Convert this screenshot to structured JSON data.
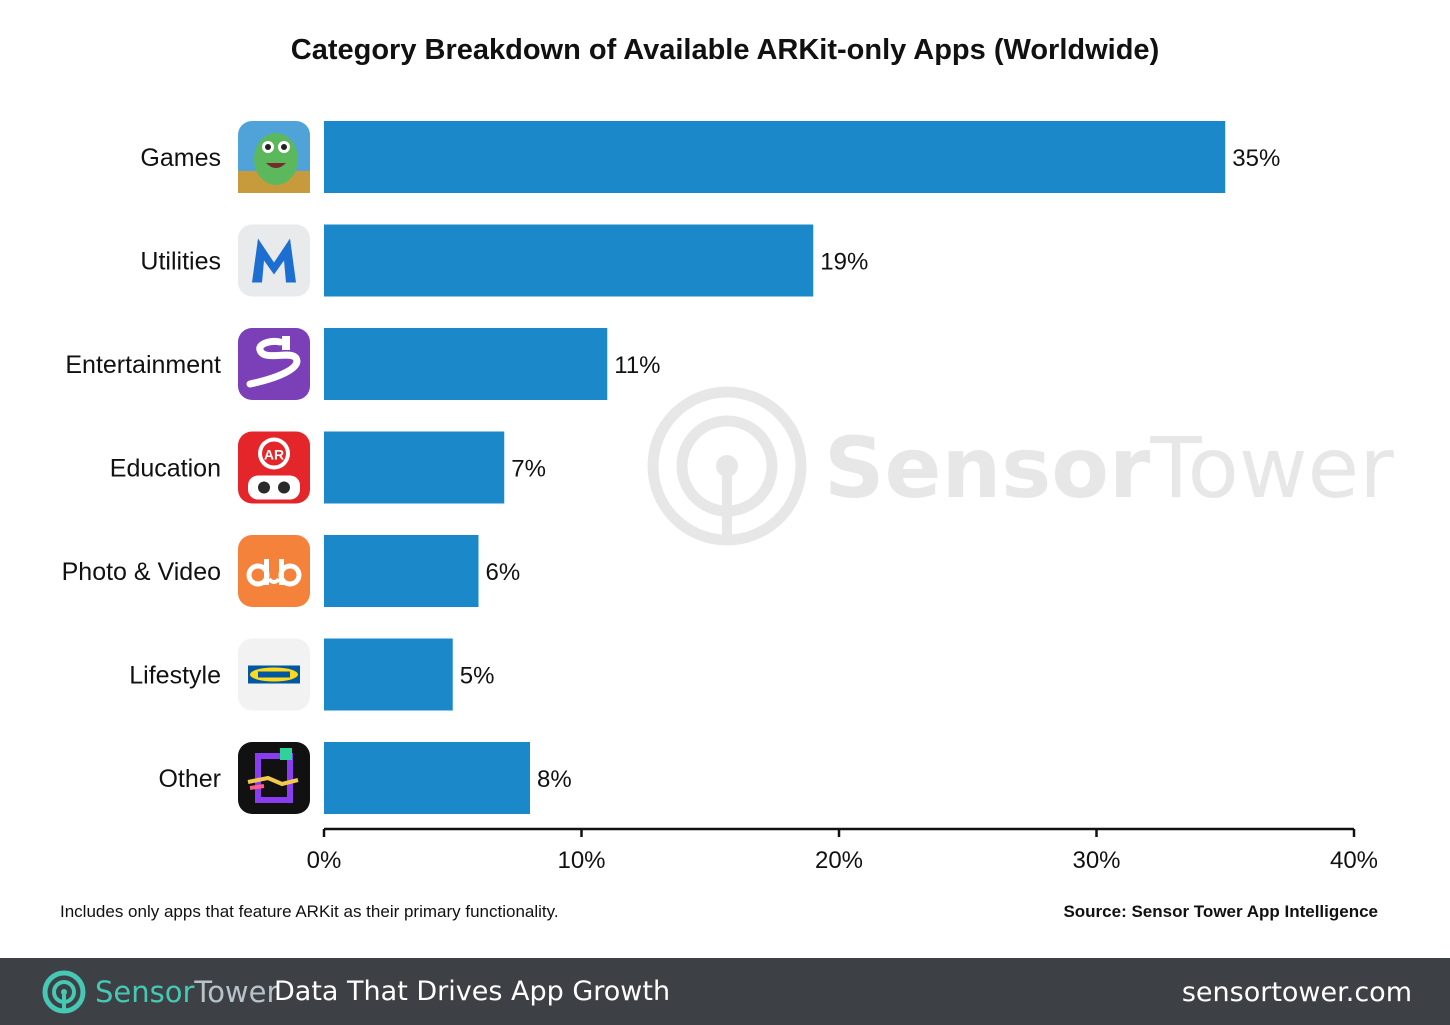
{
  "chart_data": {
    "type": "bar",
    "orientation": "horizontal",
    "title": "Category Breakdown of Available ARKit-only Apps (Worldwide)",
    "categories": [
      "Games",
      "Utilities",
      "Entertainment",
      "Education",
      "Photo & Video",
      "Lifestyle",
      "Other"
    ],
    "values": [
      35,
      19,
      11,
      7,
      6,
      5,
      8
    ],
    "value_labels": [
      "35%",
      "19%",
      "11%",
      "7%",
      "6%",
      "5%",
      "8%"
    ],
    "xlim": [
      0,
      40
    ],
    "ticks": [
      0,
      10,
      20,
      30,
      40
    ],
    "tick_labels": [
      "0%",
      "10%",
      "20%",
      "30%",
      "40%"
    ],
    "xlabel": "",
    "ylabel": "",
    "bar_color": "#1a88c9",
    "grid": false,
    "legend": "none",
    "category_icons": [
      "dinosaur-game-icon",
      "measure-m-icon",
      "drawing-path-icon",
      "ar-robot-icon",
      "dub-icon",
      "ikea-icon",
      "frame-art-icon"
    ]
  },
  "footnote": "Includes only apps that feature ARKit as their primary functionality.",
  "source": "Source: Sensor Tower App Intelligence",
  "watermark": {
    "part1": "Sensor",
    "part2": "Tower"
  },
  "footer": {
    "brand_part1": "Sensor",
    "brand_part2": "Tower",
    "tagline": "Data That Drives App Growth",
    "url": "sensortower.com",
    "bg_color": "#3d4146",
    "accent": "#46c8b5"
  }
}
